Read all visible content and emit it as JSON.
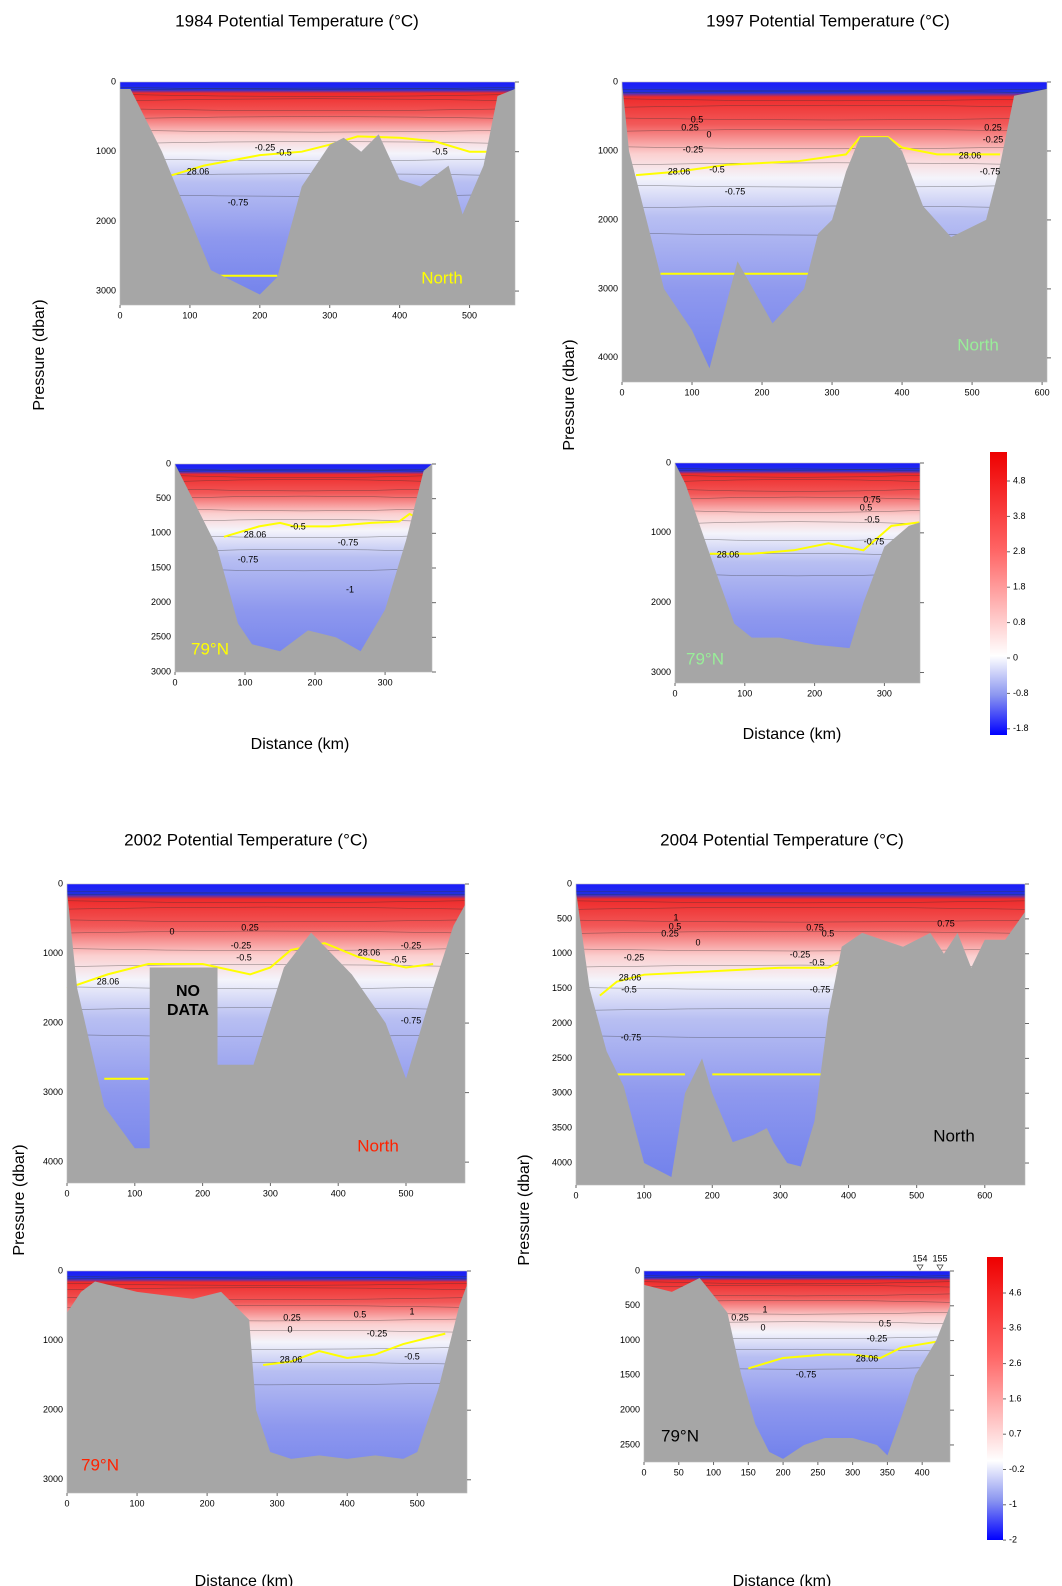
{
  "chart_data": [
    {
      "type": "contour",
      "title": "1984 Potential Temperature (°C)",
      "y_label": "Pressure (dbar)",
      "x_label": "Distance (km)",
      "sections": [
        {
          "label": "North",
          "label_color": "#ffff00",
          "xlim": [
            0,
            565
          ],
          "xticks": [
            0,
            100,
            200,
            300,
            400,
            500
          ],
          "ylim": [
            0,
            3200
          ],
          "yticks": [
            0,
            1000,
            2000,
            3000
          ],
          "contour_labels": [
            -0.25,
            -0.5,
            28.06,
            -0.75,
            -0.5
          ]
        },
        {
          "label": "79°N",
          "label_color": "#ffff00",
          "xlim": [
            0,
            367
          ],
          "xticks": [
            0,
            100,
            200,
            300
          ],
          "ylim": [
            0,
            3000
          ],
          "yticks": [
            0,
            500,
            1000,
            1500,
            2000,
            2500,
            3000
          ],
          "contour_labels": [
            28.06,
            -0.5,
            -0.75,
            -0.75,
            -1
          ]
        }
      ]
    },
    {
      "type": "contour",
      "title": "1997 Potential Temperature (°C)",
      "y_label": "Pressure (dbar)",
      "x_label": "Distance (km)",
      "sections": [
        {
          "label": "North",
          "label_color": "#99ee99",
          "xlim": [
            0,
            607
          ],
          "xticks": [
            0,
            100,
            200,
            300,
            400,
            500,
            600
          ],
          "ylim": [
            0,
            4350
          ],
          "yticks": [
            0,
            1000,
            2000,
            3000,
            4000
          ],
          "contour_labels": [
            0.5,
            0.25,
            0,
            -0.25,
            28.06,
            -0.5,
            -0.75,
            0.25,
            -0.25,
            28.06,
            -0.75
          ]
        },
        {
          "label": "79°N",
          "label_color": "#99ee99",
          "xlim": [
            0,
            351
          ],
          "xticks": [
            0,
            100,
            200,
            300
          ],
          "ylim": [
            0,
            3150
          ],
          "yticks": [
            0,
            1000,
            2000,
            3000
          ],
          "contour_labels": [
            0.75,
            0.5,
            -0.5,
            28.06,
            -0.75
          ]
        }
      ],
      "colorbar": {
        "ticks": [
          4.8,
          3.8,
          2.8,
          1.8,
          0.8,
          0,
          -0.8,
          -1.8
        ]
      }
    },
    {
      "type": "contour",
      "title": "2002 Potential Temperature (°C)",
      "y_label": "Pressure (dbar)",
      "x_label": "Distance (km)",
      "sections": [
        {
          "label": "North",
          "label_color": "#ff2200",
          "xlim": [
            0,
            587
          ],
          "xticks": [
            0,
            100,
            200,
            300,
            400,
            500
          ],
          "ylim": [
            0,
            4300
          ],
          "yticks": [
            0,
            1000,
            2000,
            3000,
            4000
          ],
          "contour_labels": [
            0.25,
            0,
            -0.25,
            -0.5,
            28.06,
            28.06,
            -0.5,
            -0.25,
            -0.75
          ],
          "annotation_lines": [
            "NO",
            "DATA"
          ]
        },
        {
          "label": "79°N",
          "label_color": "#ff2200",
          "xlim": [
            0,
            571
          ],
          "xticks": [
            0,
            100,
            200,
            300,
            400,
            500
          ],
          "ylim": [
            0,
            3190
          ],
          "yticks": [
            0,
            1000,
            2000,
            3000
          ],
          "contour_labels": [
            0.25,
            0.5,
            1,
            0,
            -0.25,
            28.06,
            -0.5
          ]
        }
      ]
    },
    {
      "type": "contour",
      "title": "2004 Potential Temperature (°C)",
      "y_label": "Pressure (dbar)",
      "x_label": "Distance (km)",
      "sections": [
        {
          "label": "North",
          "label_color": "#000000",
          "xlim": [
            0,
            659
          ],
          "xticks": [
            0,
            100,
            200,
            300,
            400,
            500,
            600
          ],
          "ylim": [
            0,
            4315
          ],
          "yticks": [
            0,
            500,
            1000,
            1500,
            2000,
            2500,
            3000,
            3500,
            4000
          ],
          "contour_labels": [
            1,
            0.5,
            0.25,
            0,
            -0.25,
            28.06,
            -0.5,
            -0.75,
            0.75,
            0.5,
            -0.25,
            -0.5,
            -0.75,
            0.75
          ]
        },
        {
          "label": "79°N",
          "label_color": "#000000",
          "xlim": [
            0,
            440
          ],
          "xticks": [
            0,
            50,
            100,
            150,
            200,
            250,
            300,
            350,
            400
          ],
          "ylim": [
            0,
            2745
          ],
          "yticks": [
            0,
            500,
            1000,
            1500,
            2000,
            2500
          ],
          "contour_labels": [
            1,
            0,
            0.25,
            0.5,
            -0.25,
            28.06,
            -0.75
          ],
          "station_labels": [
            "154",
            "155"
          ]
        }
      ],
      "colorbar": {
        "ticks": [
          4.6,
          3.6,
          2.6,
          1.6,
          0.7,
          -0.2,
          -1,
          -2
        ]
      }
    }
  ]
}
